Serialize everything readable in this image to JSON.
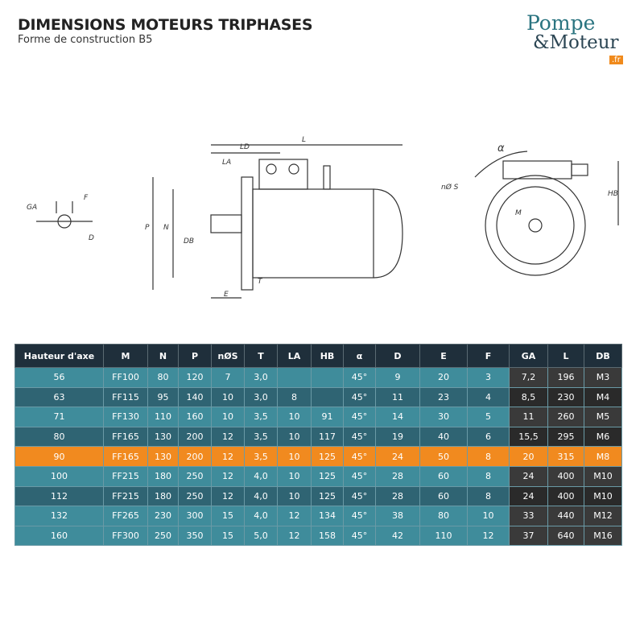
{
  "header": {
    "title": "DIMENSIONS MOTEURS TRIPHASES",
    "subtitle": "Forme de construction B5"
  },
  "logo": {
    "line1": "Pompe",
    "line2": "&Moteur",
    "badge": ".fr"
  },
  "diagram": {
    "labels": {
      "L": "L",
      "LD": "LD",
      "LA": "LA",
      "P": "P",
      "N": "N",
      "DB": "DB",
      "E": "E",
      "T": "T",
      "GA": "GA",
      "F": "F",
      "D": "D",
      "alpha": "α",
      "nS": "nØ S",
      "HB": "HB",
      "M": "M"
    }
  },
  "table": {
    "headers": [
      "Hauteur d'axe",
      "M",
      "N",
      "P",
      "nØS",
      "T",
      "LA",
      "HB",
      "α",
      "D",
      "E",
      "F",
      "GA",
      "L",
      "DB"
    ],
    "rows": [
      [
        "56",
        "FF100",
        "80",
        "120",
        "7",
        "3,0",
        null,
        null,
        "45°",
        "9",
        "20",
        "3",
        "7,2",
        "196",
        "M3"
      ],
      [
        "63",
        "FF115",
        "95",
        "140",
        "10",
        "3,0",
        "8",
        null,
        "45°",
        "11",
        "23",
        "4",
        "8,5",
        "230",
        "M4"
      ],
      [
        "71",
        "FF130",
        "110",
        "160",
        "10",
        "3,5",
        "10",
        "91",
        "45°",
        "14",
        "30",
        "5",
        "11",
        "260",
        "M5"
      ],
      [
        "80",
        "FF165",
        "130",
        "200",
        "12",
        "3,5",
        "10",
        "117",
        "45°",
        "19",
        "40",
        "6",
        "15,5",
        "295",
        "M6"
      ],
      [
        "90",
        "FF165",
        "130",
        "200",
        "12",
        "3,5",
        "10",
        "125",
        "45°",
        "24",
        "50",
        "8",
        "20",
        "315",
        "M8"
      ],
      [
        "100",
        "FF215",
        "180",
        "250",
        "12",
        "4,0",
        "10",
        "125",
        "45°",
        "28",
        "60",
        "8",
        "24",
        "400",
        "M10"
      ],
      [
        "112",
        "FF215",
        "180",
        "250",
        "12",
        "4,0",
        "10",
        "125",
        "45°",
        "28",
        "60",
        "8",
        "24",
        "400",
        "M10"
      ],
      [
        "132",
        "FF265",
        "230",
        "300",
        "15",
        "4,0",
        "12",
        "134",
        "45°",
        "38",
        "80",
        "10",
        "33",
        "440",
        "M12"
      ],
      [
        "160",
        "FF300",
        "250",
        "350",
        "15",
        "5,0",
        "12",
        "158",
        "45°",
        "42",
        "110",
        "12",
        "37",
        "640",
        "M16"
      ]
    ]
  }
}
